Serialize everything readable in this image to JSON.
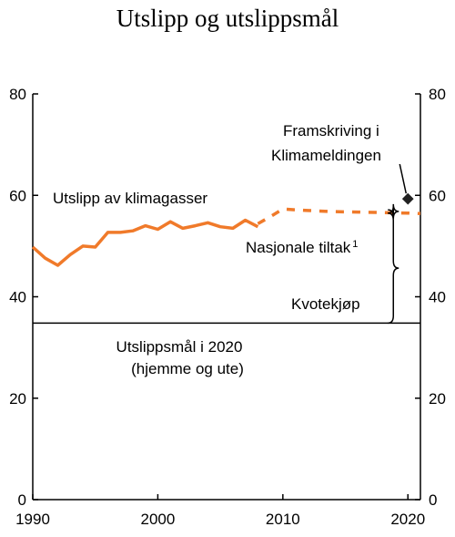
{
  "chart_data": {
    "type": "line",
    "title": "Utslipp og utslippsmål",
    "xlabel": "",
    "ylabel": "",
    "xlim": [
      1990,
      2021
    ],
    "ylim": [
      0,
      80
    ],
    "x_ticks": [
      1990,
      2000,
      2010,
      2020
    ],
    "y_ticks": [
      0,
      20,
      40,
      60,
      80
    ],
    "right_axis_ticks": [
      0,
      20,
      40,
      60,
      80
    ],
    "grid": false,
    "colors": {
      "emissions": "#f07a2a",
      "axis": "#000000",
      "marker": "#222222"
    },
    "series": [
      {
        "key": "historical",
        "name": "Utslipp av klimagasser",
        "style": "solid",
        "x": [
          1990,
          1991,
          1992,
          1993,
          1994,
          1995,
          1996,
          1997,
          1998,
          1999,
          2000,
          2001,
          2002,
          2003,
          2004,
          2005,
          2006,
          2007,
          2008
        ],
        "y": [
          49.8,
          47.6,
          46.2,
          48.3,
          50.0,
          49.8,
          52.7,
          52.7,
          53.0,
          54.0,
          53.3,
          54.8,
          53.5,
          54.0,
          54.6,
          53.8,
          53.5,
          55.1,
          53.8
        ]
      },
      {
        "key": "projection",
        "name": "",
        "style": "dashed",
        "x": [
          2008,
          2009,
          2010,
          2012,
          2014,
          2016,
          2018,
          2020,
          2021
        ],
        "y": [
          54.4,
          55.8,
          57.3,
          57.0,
          56.8,
          56.7,
          56.6,
          56.5,
          56.4
        ]
      }
    ],
    "target": {
      "value": 34.8,
      "label_line1": "Utslippsmål i 2020",
      "label_line2": "(hjemme og ute)"
    },
    "projection_point": {
      "x": 2020,
      "y": 59.3,
      "label_line1": "Framskriving i",
      "label_line2": "Klimameldingen"
    },
    "brace_split": 56.5,
    "annotations": {
      "emissions": "Utslipp av klimagasser",
      "national": "Nasjonale tiltak",
      "national_note": "1",
      "quota": "Kvotekjøp"
    }
  }
}
